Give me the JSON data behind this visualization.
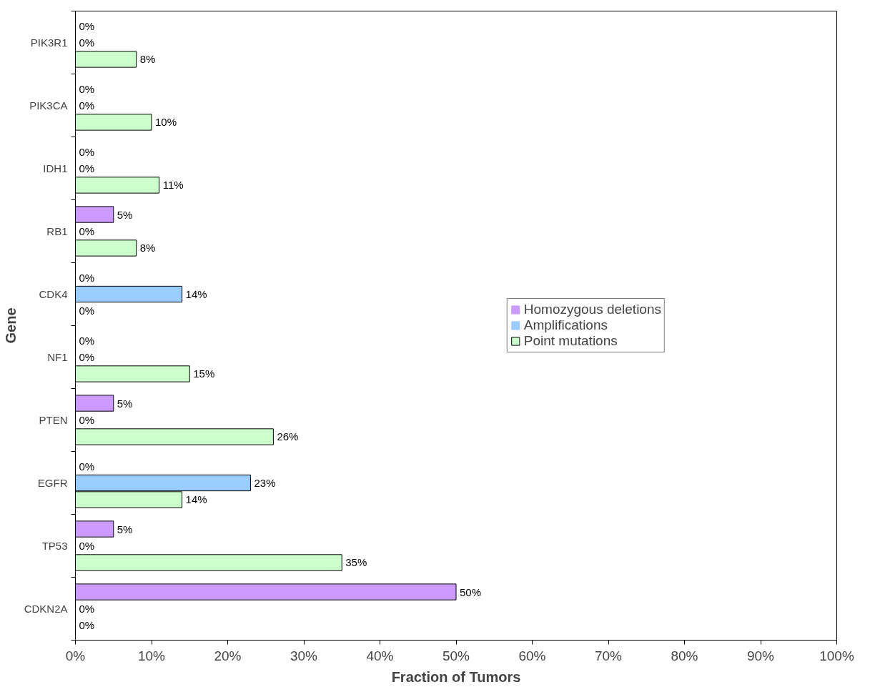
{
  "chart_data": {
    "type": "bar",
    "orientation": "horizontal",
    "xlabel": "Fraction of Tumors",
    "ylabel": "Gene",
    "categories": [
      "PIK3R1",
      "PIK3CA",
      "IDH1",
      "RB1",
      "CDK4",
      "NF1",
      "PTEN",
      "EGFR",
      "TP53",
      "CDKN2A"
    ],
    "series": [
      {
        "name": "Homozygous deletions",
        "color": "#cc99ff",
        "values": [
          0,
          0,
          0,
          5,
          0,
          0,
          5,
          0,
          5,
          50
        ],
        "value_labels": [
          "0%",
          "0%",
          "0%",
          "5%",
          "0%",
          "0%",
          "5%",
          "0%",
          "5%",
          "50%"
        ]
      },
      {
        "name": "Amplifications",
        "color": "#99ccff",
        "values": [
          0,
          0,
          0,
          0,
          14,
          0,
          0,
          23,
          0,
          0
        ],
        "value_labels": [
          "0%",
          "0%",
          "0%",
          "0%",
          "14%",
          "0%",
          "0%",
          "23%",
          "0%",
          "0%"
        ]
      },
      {
        "name": "Point mutations",
        "color": "#ccffcc",
        "values": [
          8,
          10,
          11,
          8,
          0,
          15,
          26,
          14,
          35,
          0
        ],
        "value_labels": [
          "8%",
          "10%",
          "11%",
          "8%",
          "0%",
          "15%",
          "26%",
          "14%",
          "35%",
          "0%"
        ]
      }
    ],
    "xlim": [
      0,
      100
    ],
    "xticks": [
      {
        "value": 0,
        "label": "0%"
      },
      {
        "value": 10,
        "label": "10%"
      },
      {
        "value": 20,
        "label": "20%"
      },
      {
        "value": 30,
        "label": "30%"
      },
      {
        "value": 40,
        "label": "40%"
      },
      {
        "value": 50,
        "label": "50%"
      },
      {
        "value": 60,
        "label": "60%"
      },
      {
        "value": 70,
        "label": "70%"
      },
      {
        "value": 80,
        "label": "80%"
      },
      {
        "value": 90,
        "label": "90%"
      },
      {
        "value": 100,
        "label": "100%"
      }
    ],
    "grid": false,
    "legend": "right"
  }
}
